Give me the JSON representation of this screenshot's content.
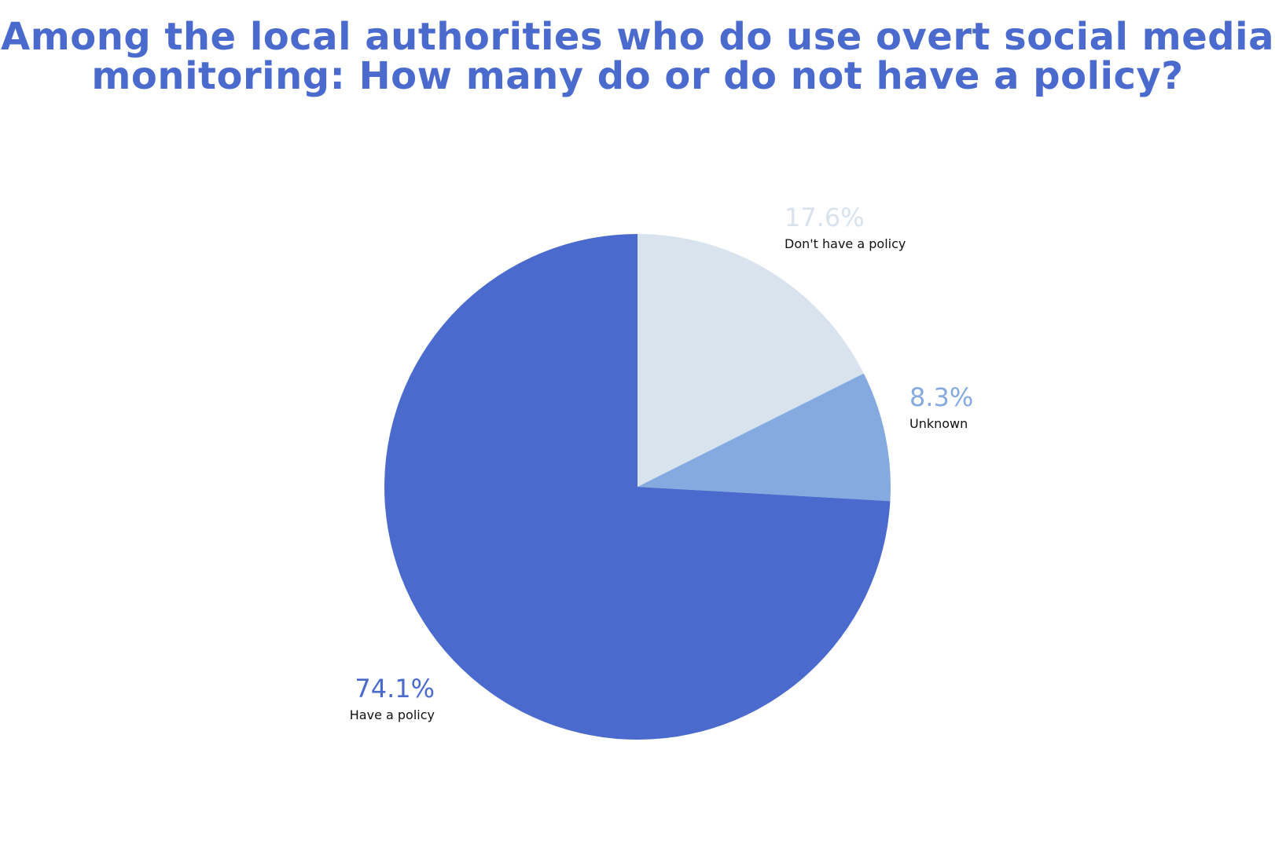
{
  "chart_data": {
    "type": "pie",
    "title": "Among the local authorities who do use overt social media monitoring: How many do or do not have a policy?",
    "start_angle": "12 o'clock",
    "direction": "clockwise",
    "slices": [
      {
        "label": "Don't have a policy",
        "value": 17.6,
        "value_label": "17.6%",
        "color": "#d8e3ed"
      },
      {
        "label": "Unknown",
        "value": 8.3,
        "value_label": "8.3%",
        "color": "#84aadf"
      },
      {
        "label": "Have a policy",
        "value": 74.1,
        "value_label": "74.1%",
        "color": "#4a6bcd"
      }
    ]
  },
  "colors": {
    "title": "#4a6bcd",
    "label_text": "#111111"
  }
}
